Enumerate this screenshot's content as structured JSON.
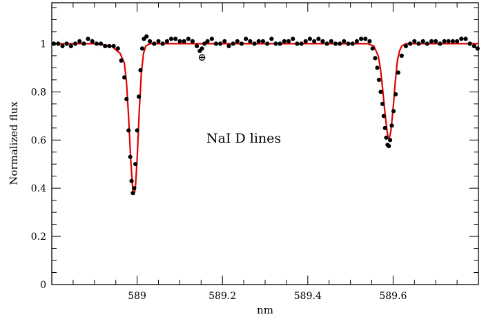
{
  "chart_data": {
    "type": "scatter",
    "title": "",
    "xlabel": "nm",
    "ylabel": "Normalized flux",
    "xlim": [
      588.8,
      589.8
    ],
    "ylim": [
      0,
      1.17
    ],
    "grid": false,
    "x_major_ticks": [
      589,
      589.2,
      589.4,
      589.6
    ],
    "x_tick_labels": [
      "589",
      "589.2",
      "589.4",
      "589.6"
    ],
    "y_major_ticks": [
      0,
      0.2,
      0.4,
      0.6,
      0.8,
      1
    ],
    "y_tick_labels": [
      "0",
      "0.2",
      "0.4",
      "0.6",
      "0.8",
      "1"
    ],
    "annotations": [
      {
        "text": "NaI  D  lines",
        "x": 589.25,
        "y": 0.59
      },
      {
        "text": "⊕",
        "x": 589.152,
        "y": 0.97
      }
    ],
    "colors": {
      "observed": "#000000",
      "model": "#e00000"
    },
    "series": [
      {
        "kind": "points",
        "x": [
          588.805,
          588.815,
          588.825,
          588.835,
          588.845,
          588.855,
          588.865,
          588.875,
          588.885,
          588.895,
          588.905,
          588.915,
          588.925,
          588.935,
          588.945,
          588.955,
          588.963,
          588.97,
          588.975,
          588.98,
          588.984,
          588.987,
          588.99,
          588.993,
          588.996,
          589.0,
          589.004,
          589.008,
          589.012,
          589.016,
          589.022,
          589.03,
          589.04,
          589.05,
          589.06,
          589.07,
          589.08,
          589.09,
          589.1,
          589.11,
          589.12,
          589.13,
          589.14,
          589.147,
          589.152,
          589.158,
          589.165,
          589.175,
          589.185,
          589.195,
          589.205,
          589.215,
          589.225,
          589.235,
          589.245,
          589.255,
          589.265,
          589.275,
          589.285,
          589.295,
          589.305,
          589.315,
          589.325,
          589.335,
          589.345,
          589.355,
          589.365,
          589.375,
          589.385,
          589.395,
          589.405,
          589.415,
          589.425,
          589.435,
          589.445,
          589.455,
          589.465,
          589.475,
          589.485,
          589.495,
          589.505,
          589.515,
          589.525,
          589.535,
          589.545,
          589.552,
          589.558,
          589.563,
          589.567,
          589.571,
          589.575,
          589.578,
          589.581,
          589.584,
          589.587,
          589.59,
          589.593,
          589.597,
          589.601,
          589.606,
          589.612,
          589.62,
          589.63,
          589.64,
          589.65,
          589.66,
          589.67,
          589.68,
          589.69,
          589.7,
          589.71,
          589.72,
          589.73,
          589.74,
          589.75,
          589.76,
          589.77,
          589.78,
          589.79,
          589.798
        ],
        "y": [
          1.0,
          1.0,
          0.99,
          1.0,
          0.99,
          1.0,
          1.01,
          1.0,
          1.02,
          1.01,
          1.0,
          1.0,
          0.99,
          0.99,
          0.99,
          0.98,
          0.93,
          0.86,
          0.77,
          0.64,
          0.53,
          0.43,
          0.38,
          0.4,
          0.5,
          0.64,
          0.78,
          0.89,
          0.98,
          1.02,
          1.03,
          1.01,
          1.0,
          1.01,
          1.0,
          1.01,
          1.02,
          1.02,
          1.01,
          1.01,
          1.02,
          1.01,
          0.99,
          0.97,
          0.98,
          1.0,
          1.01,
          1.02,
          1.0,
          1.0,
          1.01,
          0.99,
          1.0,
          1.01,
          1.0,
          1.02,
          1.01,
          1.0,
          1.01,
          1.01,
          1.0,
          1.02,
          1.0,
          1.0,
          1.01,
          1.01,
          1.02,
          1.0,
          1.0,
          1.01,
          1.02,
          1.01,
          1.02,
          1.01,
          1.0,
          1.01,
          1.0,
          1.0,
          1.01,
          1.0,
          1.0,
          1.01,
          1.02,
          1.02,
          1.01,
          0.98,
          0.94,
          0.9,
          0.85,
          0.8,
          0.75,
          0.7,
          0.65,
          0.61,
          0.58,
          0.575,
          0.6,
          0.66,
          0.72,
          0.79,
          0.88,
          0.95,
          0.99,
          1.0,
          1.01,
          1.0,
          1.01,
          1.0,
          1.01,
          1.01,
          1.0,
          1.01,
          1.01,
          1.01,
          1.01,
          1.02,
          1.02,
          1.0,
          0.99,
          0.98
        ]
      },
      {
        "kind": "model-line",
        "x": [
          588.8,
          588.9,
          588.94,
          588.96,
          588.97,
          588.975,
          588.98,
          588.985,
          588.99,
          588.993,
          588.996,
          589.0,
          589.005,
          589.01,
          589.015,
          589.02,
          589.03,
          589.06,
          589.1,
          589.2,
          589.3,
          589.4,
          589.5,
          589.54,
          589.555,
          589.565,
          589.57,
          589.575,
          589.58,
          589.585,
          589.588,
          589.591,
          589.595,
          589.6,
          589.605,
          589.61,
          589.615,
          589.62,
          589.63,
          589.65,
          589.7,
          589.8
        ],
        "y": [
          1.0,
          1.0,
          0.99,
          0.96,
          0.92,
          0.84,
          0.7,
          0.52,
          0.39,
          0.375,
          0.4,
          0.52,
          0.72,
          0.88,
          0.96,
          0.99,
          1.0,
          1.0,
          1.0,
          1.0,
          1.0,
          1.0,
          1.0,
          1.0,
          0.99,
          0.95,
          0.9,
          0.82,
          0.73,
          0.65,
          0.61,
          0.605,
          0.64,
          0.73,
          0.84,
          0.93,
          0.97,
          0.99,
          1.0,
          1.0,
          1.0,
          1.0
        ]
      }
    ]
  }
}
